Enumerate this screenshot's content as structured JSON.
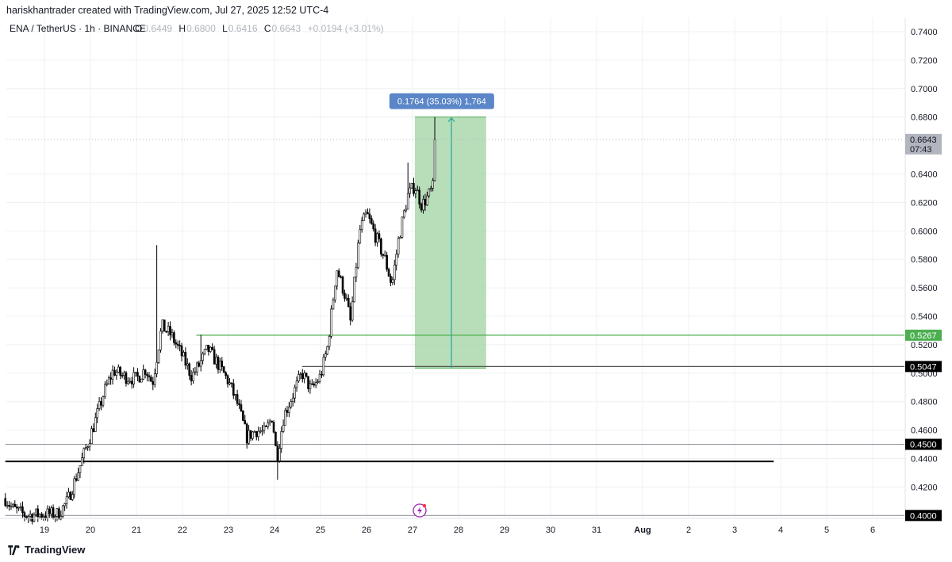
{
  "header": {
    "attribution": "hariskhantrader created with TradingView.com, Jul 27, 2025 12:52 UTC-4"
  },
  "legend": {
    "symbol": "ENA / TetherUS · 1h · BINANCE",
    "open_label": "O",
    "open": "0.6449",
    "high_label": "H",
    "high": "0.6800",
    "low_label": "L",
    "low": "0.6416",
    "close_label": "C",
    "close": "0.6643",
    "change": "+0.0194 (+3.01%)"
  },
  "footer": {
    "brand": "TradingView"
  },
  "colors": {
    "up": "#ffffff",
    "down": "#000000",
    "wick": "#000000",
    "support_green": "#4caf50",
    "zone_fill": "#a5d6a7",
    "measure_label_bg": "#5b86c8",
    "grid": "#eef0f4",
    "axis_text": "#131722",
    "last_price_bg": "#b2b5be"
  },
  "chart_data": {
    "type": "candlestick",
    "symbol": "ENA / TetherUS",
    "timeframe": "1h",
    "exchange": "BINANCE",
    "ylim": [
      0.3985,
      0.75
    ],
    "xlim": [
      18.15,
      7.0
    ],
    "y_ticks": [
      "0.4200",
      "0.4400",
      "0.4600",
      "0.4800",
      "0.5000",
      "0.5200",
      "0.5400",
      "0.5600",
      "0.5800",
      "0.6000",
      "0.6200",
      "0.6400",
      "0.6800",
      "0.7000",
      "0.7200",
      "0.7400"
    ],
    "x_ticks": [
      {
        "label": "19",
        "t": 19
      },
      {
        "label": "20",
        "t": 20
      },
      {
        "label": "21",
        "t": 21
      },
      {
        "label": "22",
        "t": 22
      },
      {
        "label": "23",
        "t": 23
      },
      {
        "label": "24",
        "t": 24
      },
      {
        "label": "25",
        "t": 25
      },
      {
        "label": "26",
        "t": 26
      },
      {
        "label": "27",
        "t": 27
      },
      {
        "label": "28",
        "t": 28
      },
      {
        "label": "29",
        "t": 29
      },
      {
        "label": "30",
        "t": 30
      },
      {
        "label": "31",
        "t": 31
      },
      {
        "label": "Aug",
        "t": 32
      },
      {
        "label": "2",
        "t": 33
      },
      {
        "label": "3",
        "t": 34
      },
      {
        "label": "4",
        "t": 35
      },
      {
        "label": "5",
        "t": 36
      },
      {
        "label": "6",
        "t": 37
      }
    ],
    "price_anchors": [
      {
        "t": 18.15,
        "p": 0.412
      },
      {
        "t": 18.3,
        "p": 0.405
      },
      {
        "t": 18.6,
        "p": 0.4
      },
      {
        "t": 19.0,
        "p": 0.401
      },
      {
        "t": 19.3,
        "p": 0.401
      },
      {
        "t": 19.5,
        "p": 0.41
      },
      {
        "t": 19.7,
        "p": 0.428
      },
      {
        "t": 19.9,
        "p": 0.447
      },
      {
        "t": 20.1,
        "p": 0.466
      },
      {
        "t": 20.3,
        "p": 0.487
      },
      {
        "t": 20.5,
        "p": 0.502
      },
      {
        "t": 20.7,
        "p": 0.498
      },
      {
        "t": 21.0,
        "p": 0.496
      },
      {
        "t": 21.2,
        "p": 0.503
      },
      {
        "t": 21.35,
        "p": 0.493
      },
      {
        "t": 21.55,
        "p": 0.533
      },
      {
        "t": 21.75,
        "p": 0.527
      },
      {
        "t": 21.95,
        "p": 0.515
      },
      {
        "t": 22.2,
        "p": 0.498
      },
      {
        "t": 22.35,
        "p": 0.505
      },
      {
        "t": 22.55,
        "p": 0.517
      },
      {
        "t": 22.8,
        "p": 0.505
      },
      {
        "t": 23.0,
        "p": 0.494
      },
      {
        "t": 23.2,
        "p": 0.478
      },
      {
        "t": 23.4,
        "p": 0.455
      },
      {
        "t": 23.6,
        "p": 0.46
      },
      {
        "t": 23.8,
        "p": 0.458
      },
      {
        "t": 23.95,
        "p": 0.47
      },
      {
        "t": 24.05,
        "p": 0.44
      },
      {
        "t": 24.2,
        "p": 0.47
      },
      {
        "t": 24.4,
        "p": 0.485
      },
      {
        "t": 24.6,
        "p": 0.5
      },
      {
        "t": 24.8,
        "p": 0.488
      },
      {
        "t": 25.0,
        "p": 0.498
      },
      {
        "t": 25.15,
        "p": 0.518
      },
      {
        "t": 25.35,
        "p": 0.574
      },
      {
        "t": 25.55,
        "p": 0.553
      },
      {
        "t": 25.65,
        "p": 0.536
      },
      {
        "t": 25.85,
        "p": 0.6
      },
      {
        "t": 26.0,
        "p": 0.612
      },
      {
        "t": 26.2,
        "p": 0.596
      },
      {
        "t": 26.4,
        "p": 0.58
      },
      {
        "t": 26.55,
        "p": 0.562
      },
      {
        "t": 26.7,
        "p": 0.595
      },
      {
        "t": 26.9,
        "p": 0.625
      },
      {
        "t": 27.05,
        "p": 0.632
      },
      {
        "t": 27.2,
        "p": 0.618
      },
      {
        "t": 27.35,
        "p": 0.625
      },
      {
        "t": 27.45,
        "p": 0.631
      },
      {
        "t": 27.5,
        "p": 0.6643
      }
    ],
    "horizontal_levels": [
      {
        "price": 0.5267,
        "label": "0.5267",
        "style": "green",
        "t_start": 22.3
      },
      {
        "price": 0.5047,
        "label": "0.5047",
        "style": "dark",
        "t_start": 24.6
      },
      {
        "price": 0.45,
        "label": "0.4500",
        "style": "gray",
        "t_start": 18.15
      },
      {
        "price": 0.4,
        "label": "0.4000",
        "style": "gray",
        "t_start": 18.15
      },
      {
        "price": 0.438,
        "label": "",
        "style": "black",
        "t_start": 18.15,
        "t_end": 34.85
      }
    ],
    "last_price": {
      "price": 0.6643,
      "label": "0.6643",
      "countdown": "07:43"
    },
    "price_range_measure": {
      "t_start": 27.05,
      "t_end": 28.6,
      "price_low": 0.5036,
      "price_high": 0.68,
      "label": "0.1764 (35.03%) 1,764"
    },
    "event_marker_t": 27.5
  }
}
